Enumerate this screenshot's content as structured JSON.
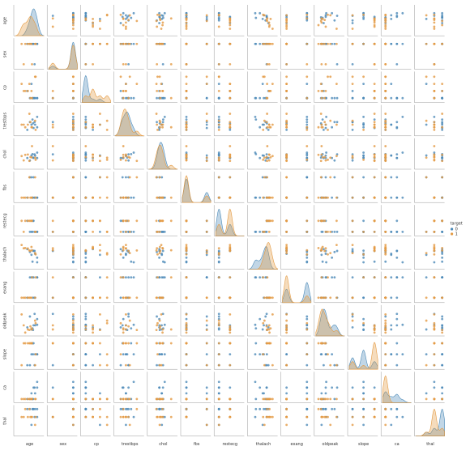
{
  "chart_data": {
    "type": "pairplot",
    "variables": [
      "age",
      "sex",
      "cp",
      "trestbps",
      "chol",
      "fbs",
      "restecg",
      "thalach",
      "exang",
      "oldpeak",
      "slope",
      "ca",
      "thal"
    ],
    "lims": [
      [
        25,
        80
      ],
      [
        -0.2,
        1.2
      ],
      [
        -0.5,
        3.5
      ],
      [
        90,
        200
      ],
      [
        120,
        420
      ],
      [
        -0.2,
        1.2
      ],
      [
        -0.3,
        2.3
      ],
      [
        80,
        210
      ],
      [
        -0.2,
        1.2
      ],
      [
        -0.5,
        5
      ],
      [
        -0.3,
        2.3
      ],
      [
        -0.5,
        4.5
      ],
      [
        -0.3,
        3.3
      ]
    ],
    "legend_title": "target",
    "series": [
      {
        "name": "0",
        "color": "#4c8ab8",
        "values": [
          [
            67,
            1,
            0,
            160,
            286,
            0,
            0,
            108,
            1,
            1.5,
            1,
            3,
            2
          ],
          [
            67,
            1,
            0,
            120,
            229,
            0,
            0,
            129,
            1,
            2.6,
            1,
            2,
            3
          ],
          [
            62,
            0,
            0,
            140,
            268,
            0,
            0,
            160,
            0,
            3.6,
            0,
            2,
            2
          ],
          [
            63,
            1,
            0,
            130,
            254,
            0,
            0,
            147,
            0,
            1.4,
            1,
            1,
            3
          ],
          [
            53,
            1,
            0,
            140,
            203,
            1,
            0,
            155,
            1,
            3.1,
            0,
            0,
            3
          ],
          [
            56,
            1,
            2,
            130,
            256,
            1,
            0,
            142,
            1,
            0.6,
            1,
            1,
            1
          ],
          [
            48,
            1,
            1,
            110,
            229,
            0,
            1,
            168,
            0,
            1,
            0,
            0,
            3
          ],
          [
            58,
            1,
            0,
            150,
            270,
            0,
            0,
            111,
            1,
            0.8,
            2,
            0,
            3
          ],
          [
            60,
            1,
            0,
            117,
            230,
            1,
            1,
            160,
            1,
            1.4,
            2,
            2,
            3
          ],
          [
            59,
            1,
            0,
            135,
            234,
            0,
            1,
            161,
            0,
            0.5,
            1,
            0,
            3
          ]
        ]
      },
      {
        "name": "1",
        "color": "#e39a43",
        "values": [
          [
            63,
            1,
            3,
            145,
            233,
            1,
            0,
            150,
            0,
            2.3,
            0,
            0,
            1
          ],
          [
            37,
            1,
            2,
            130,
            250,
            0,
            1,
            187,
            0,
            3.5,
            0,
            0,
            2
          ],
          [
            41,
            0,
            1,
            130,
            204,
            0,
            0,
            172,
            0,
            1.4,
            2,
            0,
            2
          ],
          [
            56,
            1,
            1,
            120,
            236,
            0,
            1,
            178,
            0,
            0.8,
            2,
            0,
            2
          ],
          [
            57,
            0,
            0,
            120,
            354,
            0,
            1,
            163,
            1,
            0.6,
            2,
            0,
            2
          ],
          [
            44,
            1,
            1,
            120,
            263,
            0,
            1,
            173,
            0,
            0,
            2,
            0,
            3
          ],
          [
            52,
            1,
            2,
            172,
            199,
            1,
            1,
            162,
            0,
            0.5,
            2,
            0,
            3
          ],
          [
            54,
            1,
            0,
            140,
            239,
            0,
            1,
            160,
            0,
            1.2,
            2,
            0,
            2
          ],
          [
            49,
            1,
            1,
            130,
            266,
            0,
            1,
            171,
            0,
            0.6,
            2,
            0,
            2
          ],
          [
            64,
            1,
            3,
            110,
            211,
            0,
            0,
            144,
            1,
            1.8,
            1,
            0,
            2
          ]
        ]
      }
    ]
  }
}
